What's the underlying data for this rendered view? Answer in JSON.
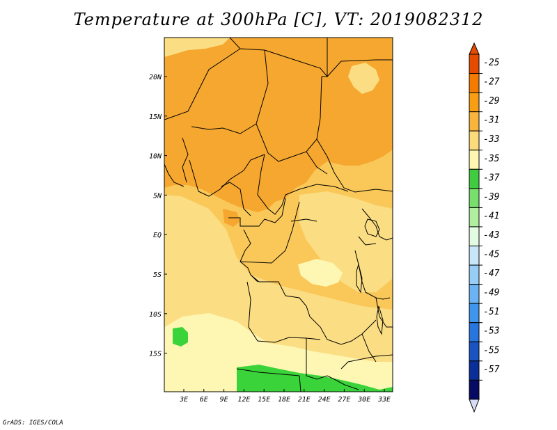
{
  "title": "Temperature at 300hPa [C], VT: 2019082312",
  "credit": "GrADS: IGES/COLA",
  "map": {
    "lon_ticks": [
      "3E",
      "6E",
      "9E",
      "12E",
      "15E",
      "18E",
      "21E",
      "24E",
      "27E",
      "30E",
      "33E"
    ],
    "lat_ticks": [
      "20N",
      "15N",
      "10N",
      "5N",
      "EQ",
      "5S",
      "10S",
      "15S"
    ]
  },
  "colorbar": {
    "labels": [
      "-25",
      "-27",
      "-29",
      "-31",
      "-33",
      "-35",
      "-37",
      "-39",
      "-41",
      "-43",
      "-45",
      "-47",
      "-49",
      "-51",
      "-53",
      "-55",
      "-57"
    ],
    "colors": [
      "#e64b00",
      "#f57a00",
      "#f99d12",
      "#f9b43c",
      "#fbdb7a",
      "#fef7b1",
      "#3fcc3f",
      "#78de6c",
      "#afef9f",
      "#e3fbe3",
      "#c7e7f9",
      "#98cdf6",
      "#6bb3f2",
      "#3f95ec",
      "#2775df",
      "#1a54c3",
      "#0a2f9a",
      "#060a63"
    ],
    "top_arrow_color": "#e64b00",
    "bottom_arrow_color": "#d7dbf3"
  },
  "fields": {
    "band_m29": "#f5a72f",
    "band_m31": "#f9c859",
    "band_m33": "#fbde83",
    "band_m35": "#fef6b3",
    "band_m37": "#3ad43a"
  }
}
